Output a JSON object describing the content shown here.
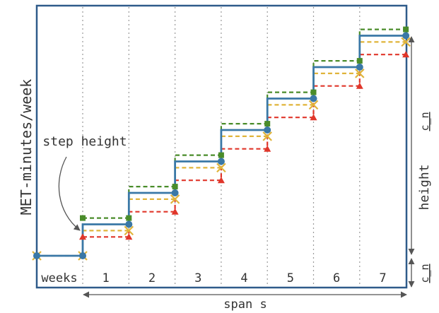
{
  "labels": {
    "y_axis": "MET-minutes/week",
    "step_height": "step height",
    "weeks": "weeks",
    "week_numbers": [
      "1",
      "2",
      "3",
      "4",
      "5",
      "6",
      "7"
    ],
    "span": "span s",
    "height": "height",
    "c_n_top": "c_n",
    "c_n_bottom": "c_n"
  },
  "colors": {
    "frame": "#2f5b8a",
    "blue": "#3a78a6",
    "green": "#4a8c2a",
    "yellow": "#e0b43a",
    "red": "#e0362a",
    "grid": "#9a9a9a",
    "dim": "#555555"
  },
  "diagram": {
    "weeks": 7,
    "levels": {
      "blue": [
        0,
        1,
        2,
        3,
        4,
        5,
        6,
        7
      ],
      "green": [
        null,
        1.2,
        2.2,
        3.2,
        4.2,
        5.2,
        6.2,
        7.2
      ],
      "yellow": [
        0,
        0.8,
        1.8,
        2.8,
        3.8,
        4.8,
        5.8,
        6.8
      ],
      "red": [
        null,
        0.6,
        1.4,
        2.4,
        3.4,
        4.4,
        5.4,
        6.4
      ]
    }
  }
}
